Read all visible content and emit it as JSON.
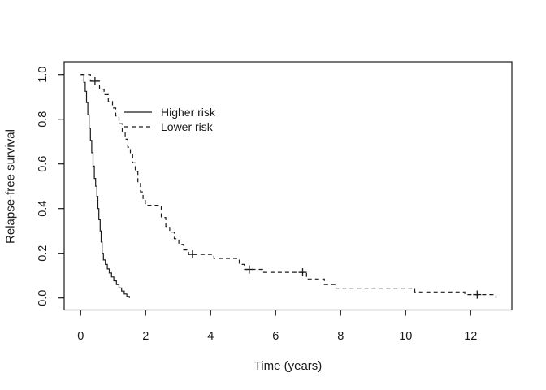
{
  "figure": {
    "background": "#ffffff",
    "foreground": "#1a1a1a"
  },
  "chart_data": {
    "type": "line",
    "subtype": "kaplan-meier-step-function",
    "title": "",
    "xlabel": "Time (years)",
    "ylabel": "Relapse-free survival",
    "xlim": [
      -0.5,
      13.3
    ],
    "ylim": [
      0,
      1.04
    ],
    "grid": false,
    "x_ticks": [
      0,
      2,
      4,
      6,
      8,
      10,
      12
    ],
    "x_tick_labels": [
      "0",
      "2",
      "4",
      "6",
      "8",
      "10",
      "12"
    ],
    "y_ticks": [
      0,
      0.2,
      0.4,
      0.6,
      0.8,
      1
    ],
    "y_tick_labels": [
      "0.0",
      "0.2",
      "0.4",
      "0.6",
      "0.8",
      "1.0"
    ],
    "legend": {
      "position": "inside-upper-left",
      "border": false
    },
    "colors": {
      "line": "#1a1a1a",
      "background": "#ffffff"
    },
    "series": [
      {
        "name": "Higher risk",
        "line_style": "solid",
        "points": [
          [
            0,
            1.0
          ],
          [
            0.1,
            0.965
          ],
          [
            0.14,
            0.925
          ],
          [
            0.18,
            0.875
          ],
          [
            0.22,
            0.82
          ],
          [
            0.26,
            0.76
          ],
          [
            0.3,
            0.705
          ],
          [
            0.34,
            0.65
          ],
          [
            0.38,
            0.59
          ],
          [
            0.42,
            0.535
          ],
          [
            0.46,
            0.5
          ],
          [
            0.5,
            0.455
          ],
          [
            0.53,
            0.4
          ],
          [
            0.56,
            0.35
          ],
          [
            0.6,
            0.3
          ],
          [
            0.63,
            0.25
          ],
          [
            0.66,
            0.2
          ],
          [
            0.7,
            0.17
          ],
          [
            0.76,
            0.15
          ],
          [
            0.82,
            0.13
          ],
          [
            0.88,
            0.112
          ],
          [
            0.95,
            0.094
          ],
          [
            1.02,
            0.077
          ],
          [
            1.1,
            0.06
          ],
          [
            1.18,
            0.045
          ],
          [
            1.26,
            0.031
          ],
          [
            1.34,
            0.018
          ],
          [
            1.42,
            0.007
          ],
          [
            1.5,
            0
          ]
        ],
        "censor_marks": []
      },
      {
        "name": "Lower risk",
        "line_style": "dashed",
        "points": [
          [
            0,
            1.0
          ],
          [
            0.3,
            0.97
          ],
          [
            0.58,
            0.935
          ],
          [
            0.72,
            0.91
          ],
          [
            0.85,
            0.88
          ],
          [
            0.98,
            0.85
          ],
          [
            1.08,
            0.815
          ],
          [
            1.18,
            0.78
          ],
          [
            1.28,
            0.745
          ],
          [
            1.37,
            0.71
          ],
          [
            1.45,
            0.675
          ],
          [
            1.53,
            0.64
          ],
          [
            1.6,
            0.605
          ],
          [
            1.68,
            0.565
          ],
          [
            1.76,
            0.52
          ],
          [
            1.84,
            0.475
          ],
          [
            1.92,
            0.445
          ],
          [
            1.99,
            0.415
          ],
          [
            2.48,
            0.36
          ],
          [
            2.62,
            0.32
          ],
          [
            2.74,
            0.295
          ],
          [
            2.88,
            0.265
          ],
          [
            3.02,
            0.24
          ],
          [
            3.17,
            0.215
          ],
          [
            3.32,
            0.195
          ],
          [
            4.1,
            0.177
          ],
          [
            4.88,
            0.15
          ],
          [
            5.04,
            0.128
          ],
          [
            5.6,
            0.115
          ],
          [
            6.95,
            0.085
          ],
          [
            7.5,
            0.06
          ],
          [
            7.85,
            0.044
          ],
          [
            10.28,
            0.027
          ],
          [
            11.82,
            0.015
          ],
          [
            12.78,
            0
          ]
        ],
        "censor_marks": [
          [
            0.44,
            0.97
          ],
          [
            3.44,
            0.195
          ],
          [
            5.19,
            0.128
          ],
          [
            6.83,
            0.115
          ],
          [
            12.2,
            0.015
          ]
        ]
      }
    ]
  }
}
